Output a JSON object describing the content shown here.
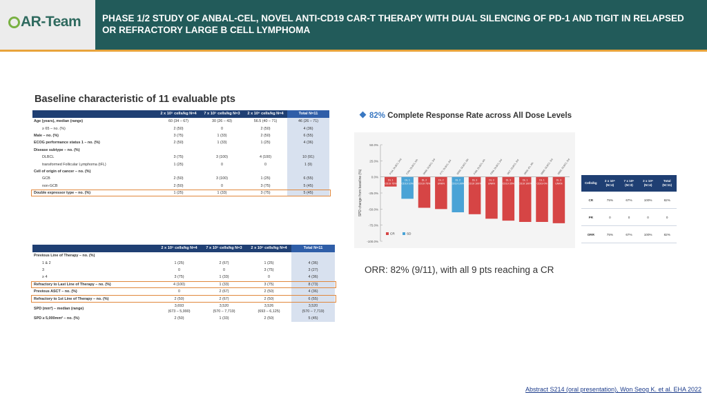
{
  "header": {
    "logo_text": "AR-Team",
    "title": "PHASE 1/2 STUDY OF ANBAL-CEL, NOVEL ANTI-CD19 CAR-T THERAPY WITH DUAL SILENCING OF PD-1 AND TIGIT IN RELAPSED OR REFRACTORY LARGE B CELL LYMPHOMA",
    "brand_color": "#225b5a",
    "accent_color": "#e8a33a"
  },
  "baseline": {
    "heading": "Baseline characteristic of 11 evaluable pts",
    "columns": [
      "",
      "2 x 10⁵ cells/kg N=4",
      "7 x 10⁵ cells/kg N=3",
      "2 x 10⁶ cells/kg N=4",
      "Total N=11"
    ],
    "table1": [
      [
        "Age (years), median (range)",
        "60 (34 – 67)",
        "30 (26 – 43)",
        "56.5 (40 – 71)",
        "46 (26 – 71)"
      ],
      [
        "  ≥ 65 – no. (%)",
        "2 (50)",
        "0",
        "2 (50)",
        "4 (36)"
      ],
      [
        "Male – no. (%)",
        "3 (75)",
        "1 (33)",
        "2 (50)",
        "6 (55)"
      ],
      [
        "ECOG performance status 1 – no. (%)",
        "2 (50)",
        "1 (33)",
        "1 (25)",
        "4 (36)"
      ],
      [
        "Disease subtype – no. (%)",
        "",
        "",
        "",
        ""
      ],
      [
        "    DLBCL",
        "3 (75)",
        "3 (100)",
        "4 (100)",
        "10 (91)"
      ],
      [
        "    transformed Follicular Lymphoma (tFL)",
        "1 (25)",
        "0",
        "0",
        "1 (9)"
      ],
      [
        "Cell of origin of cancer – no. (%)",
        "",
        "",
        "",
        ""
      ],
      [
        "    GCB",
        "2 (50)",
        "3 (100)",
        "1 (25)",
        "6 (55)"
      ],
      [
        "    non-GCB",
        "2 (50)",
        "0",
        "3 (75)",
        "5 (45)"
      ],
      [
        "Double expressor type – no. (%)",
        "1 (25)",
        "1 (33)",
        "3 (75)",
        "5 (45)"
      ]
    ],
    "table2": [
      [
        "Previous Line of Therapy – no. (%)",
        "",
        "",
        "",
        ""
      ],
      [
        "    1 & 2",
        "1 (25)",
        "2 (67)",
        "1 (25)",
        "4 (36)"
      ],
      [
        "    3",
        "0",
        "0",
        "3 (75)",
        "3 (27)"
      ],
      [
        "    ≥ 4",
        "3 (75)",
        "1 (33)",
        "0",
        "4 (36)"
      ],
      [
        "Refractory to Last Line of Therapy – no. (%)",
        "4 (100)",
        "1 (33)",
        "3 (75)",
        "8 (73)"
      ],
      [
        "Previous ASCT – no. (%)",
        "0",
        "2 (67)",
        "2 (50)",
        "4 (36)"
      ],
      [
        "Refractory to 1st Line of Therapy – no. (%)",
        "2 (50)",
        "2 (67)",
        "2 (50)",
        "6 (55)"
      ],
      [
        "SPD (mm²) – median (range)",
        "3,693\n(673 – 5,990)",
        "3,520\n(570 – 7,719)",
        "3,526\n(693 – 6,125)",
        "3,520\n(570 – 7,719)"
      ],
      [
        "SPD ≥ 5,000mm² – no. (%)",
        "2 (50)",
        "1 (33)",
        "2 (50)",
        "5 (45)"
      ]
    ]
  },
  "response": {
    "heading_pct": "82%",
    "heading_text": "Complete Response Rate across All Dose Levels",
    "orr_text": "ORR: 82% (9/11), with all 9 pts reaching a CR"
  },
  "chart_data": {
    "type": "bar",
    "ylabel": "SPD change from baseline (%)",
    "ylim": [
      -100,
      50
    ],
    "yticks": [
      "50.0%",
      "25.0%",
      "0.0%",
      "-25.0%",
      "-50.0%",
      "-75.0%",
      "-100.0%"
    ],
    "categories": [
      "P1M, DLBCL 2nd",
      "F3M, DLBCL 5th",
      "M4M, DLBCL 3rd",
      "F7T, DLBCL 3rd",
      "M3M, DLBCL 6th",
      "F4M, DLBCL 4th",
      "F8M, DLBCL 3rd",
      "M6T, DLBCL 3rd",
      "M6M, tFL 4th",
      "M9M, DLBCL 3rd",
      "M8M, DLBCL 3rd"
    ],
    "values": [
      -15,
      -34,
      -48,
      -50,
      -55,
      -58,
      -65,
      -68,
      -70,
      -70,
      -72
    ],
    "response": [
      "CR",
      "SD",
      "CR",
      "CR",
      "SD",
      "CR",
      "CR",
      "CR",
      "CR",
      "CR",
      "CR"
    ],
    "dose_labels": [
      "DL 1 CD19 75%",
      "DL 1 CD19 10%",
      "DL 2 CD19 75%",
      "DL 2 UNKN",
      "DL 2 CD19 100%",
      "DL 3 CD19 100%",
      "DL 3 UNKN",
      "DL 3 CD19 35%",
      "DL 1 CD19 100%",
      "DL 1 CD19 0%",
      "DL 3 UNKN"
    ],
    "legend": [
      "CR",
      "SD"
    ],
    "colors": {
      "CR": "#d64545",
      "SD": "#4aa3d6"
    }
  },
  "orr_table": {
    "columns": [
      "Cells/kg",
      "2 x 10⁵ (N=4)",
      "7 x 10⁵ (N=3)",
      "2 x 10⁶ (N=4)",
      "Total (N=11)"
    ],
    "rows": [
      [
        "CR",
        "75%",
        "67%",
        "100%",
        "82%"
      ],
      [
        "PR",
        "0",
        "0",
        "0",
        "0"
      ],
      [
        "ORR",
        "75%",
        "67%",
        "100%",
        "82%"
      ]
    ]
  },
  "footer": {
    "reference": "Abstract S214 (oral presentation), Won Seog K. et al. EHA 2022"
  }
}
